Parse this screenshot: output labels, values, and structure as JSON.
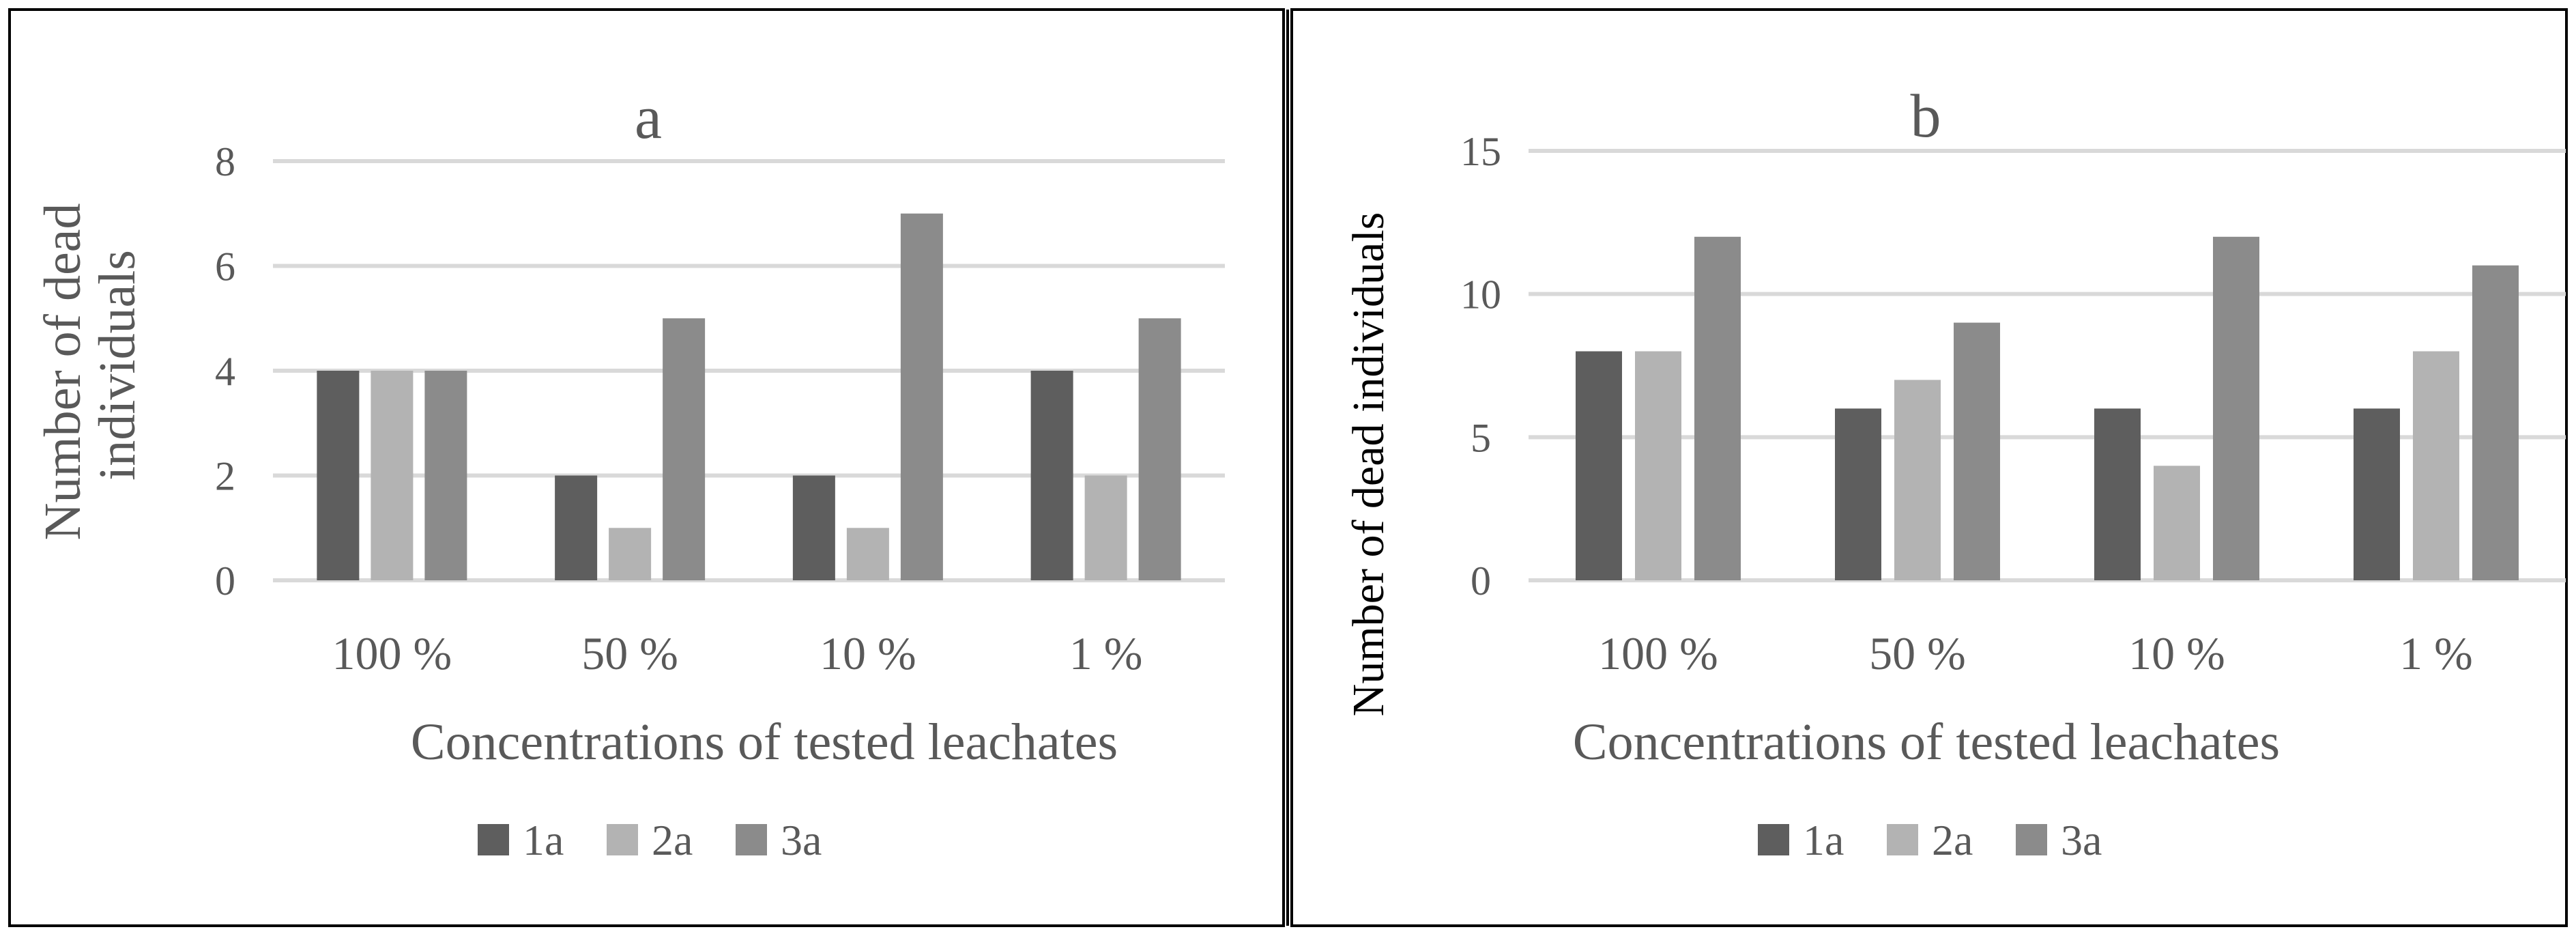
{
  "figure": {
    "legend": [
      {
        "name": "1a",
        "color": "#5e5e5e"
      },
      {
        "name": "2a",
        "color": "#b3b3b3"
      },
      {
        "name": "3a",
        "color": "#8b8b8b"
      }
    ]
  },
  "chart_data": [
    {
      "type": "bar",
      "title": "a",
      "xlabel": "Concentrations of tested leachates",
      "ylabel_lines": [
        "Number of dead",
        "individuals"
      ],
      "categories": [
        "100 %",
        "50 %",
        "10 %",
        "1 %"
      ],
      "series": [
        {
          "name": "1a",
          "values": [
            4,
            2,
            2,
            4
          ]
        },
        {
          "name": "2a",
          "values": [
            4,
            1,
            1,
            2
          ]
        },
        {
          "name": "3a",
          "values": [
            4,
            5,
            7,
            5
          ]
        }
      ],
      "ylim": [
        0,
        8
      ],
      "yticks": [
        0,
        2,
        4,
        6,
        8
      ],
      "grid": true,
      "legend_position": "bottom"
    },
    {
      "type": "bar",
      "title": "b",
      "xlabel": "Concentrations of tested leachates",
      "ylabel": "Number of dead individuals",
      "categories": [
        "100 %",
        "50 %",
        "10 %",
        "1 %"
      ],
      "series": [
        {
          "name": "1a",
          "values": [
            8,
            6,
            6,
            6
          ]
        },
        {
          "name": "2a",
          "values": [
            8,
            7,
            4,
            8
          ]
        },
        {
          "name": "3a",
          "values": [
            12,
            9,
            12,
            11
          ]
        }
      ],
      "ylim": [
        0,
        15
      ],
      "yticks": [
        0,
        5,
        10,
        15
      ],
      "grid": true,
      "legend_position": "bottom"
    }
  ]
}
